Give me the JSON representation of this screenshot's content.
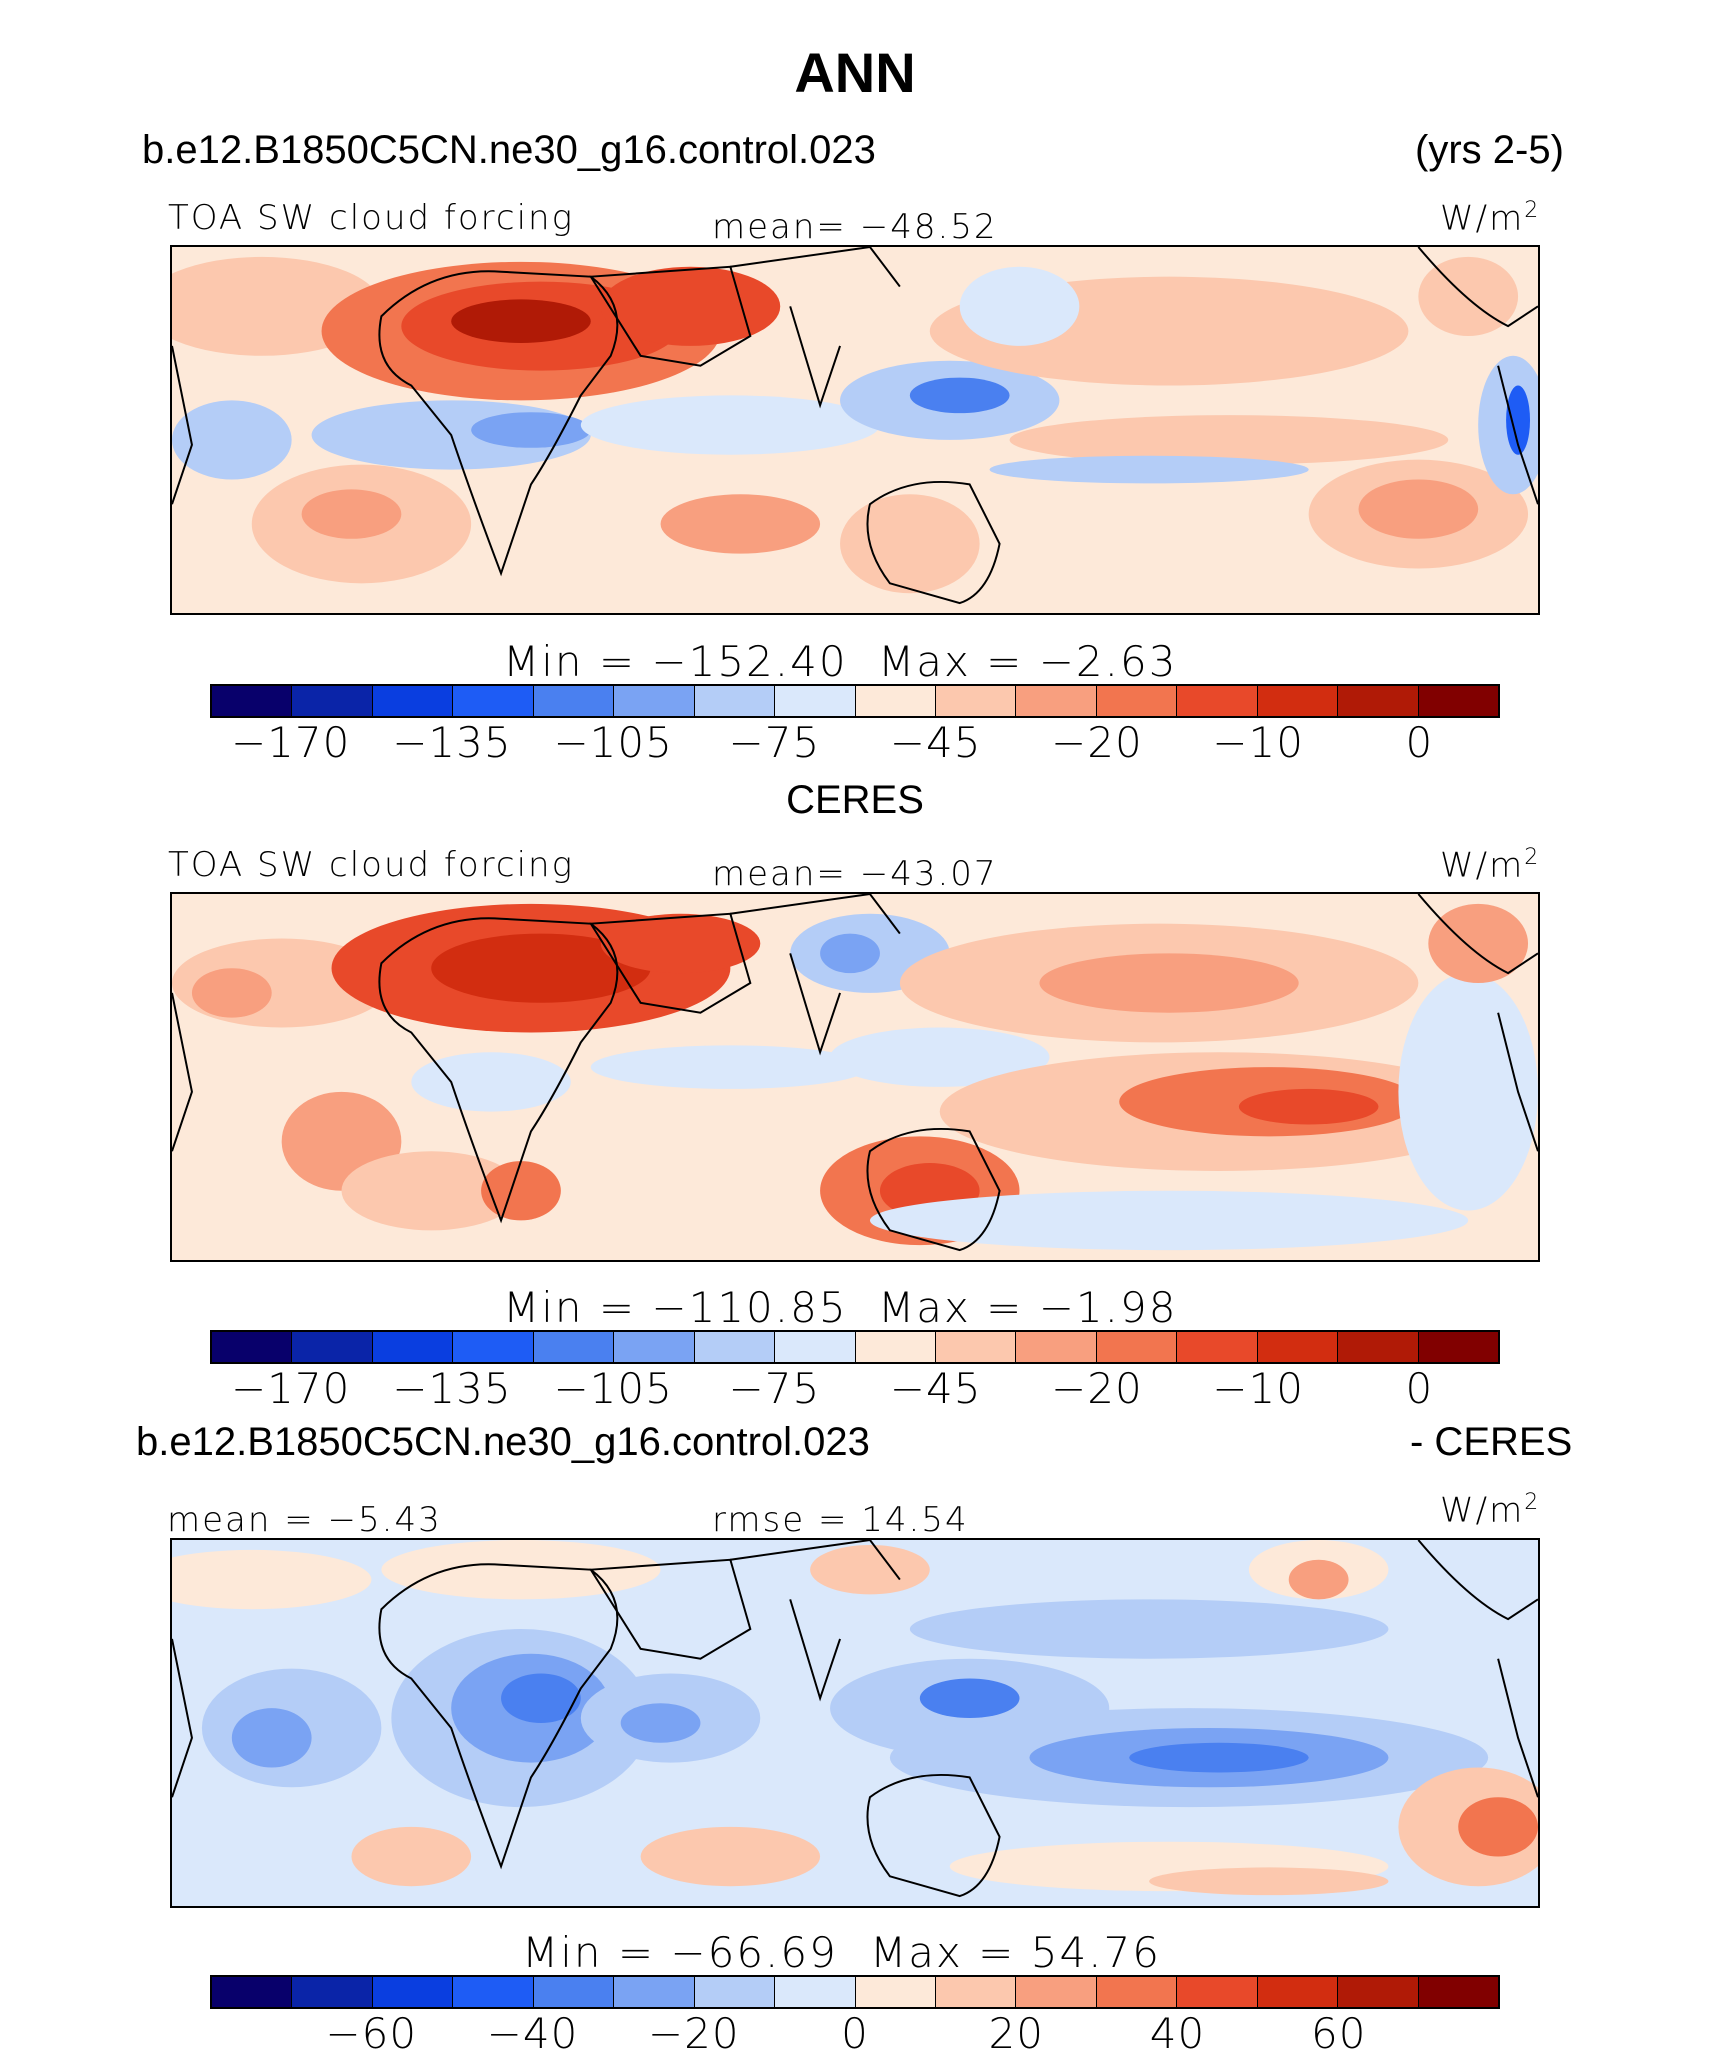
{
  "figure": {
    "title": "ANN",
    "case_name": "b.e12.B1850C5CN.ne30_g16.control.023",
    "years": "(yrs 2-5)",
    "diff_case_name": "b.e12.B1850C5CN.ne30_g16.control.023",
    "diff_suffix": "- CERES",
    "obs_title": "CERES",
    "units_base": "W/m",
    "units_exp": "2"
  },
  "panels": [
    {
      "variable": "TOA SW cloud forcing",
      "mean_text": "mean=  −48.52",
      "min_text": "Min  =  −152.40",
      "max_text": "Max  =   −2.63"
    },
    {
      "variable": "TOA SW cloud forcing",
      "mean_text": "mean=  −43.07",
      "min_text": "Min  =  −110.85",
      "max_text": "Max  =   −1.98"
    },
    {
      "mean_text": "mean  =   −5.43",
      "rmse_text": "rmse  =   14.54",
      "min_text": "Min  =  −66.69",
      "max_text": "Max  =   54.76"
    }
  ],
  "colorbars": [
    {
      "colors": [
        "#08006b",
        "#0a24a8",
        "#0a3ee0",
        "#1e5cf5",
        "#4a80f0",
        "#7aa3f3",
        "#b4cdf7",
        "#dae8fb",
        "#fde9d9",
        "#fcc8ae",
        "#f89f7f",
        "#f2754f",
        "#e8492a",
        "#d22d10",
        "#b01a06",
        "#810000"
      ],
      "tick_labels": [
        "−170",
        "−135",
        "−105",
        "−75",
        "−45",
        "−20",
        "−10",
        "0"
      ]
    },
    {
      "colors": [
        "#08006b",
        "#0a24a8",
        "#0a3ee0",
        "#1e5cf5",
        "#4a80f0",
        "#7aa3f3",
        "#b4cdf7",
        "#dae8fb",
        "#fde9d9",
        "#fcc8ae",
        "#f89f7f",
        "#f2754f",
        "#e8492a",
        "#d22d10",
        "#b01a06",
        "#810000"
      ],
      "tick_labels": [
        "−170",
        "−135",
        "−105",
        "−75",
        "−45",
        "−20",
        "−10",
        "0"
      ]
    },
    {
      "colors": [
        "#08006b",
        "#0a24a8",
        "#0a3ee0",
        "#1e5cf5",
        "#4a80f0",
        "#7aa3f3",
        "#b4cdf7",
        "#dae8fb",
        "#fde9d9",
        "#fcc8ae",
        "#f89f7f",
        "#f2754f",
        "#e8492a",
        "#d22d10",
        "#b01a06",
        "#810000"
      ],
      "tick_labels": [
        "−60",
        "−40",
        "−20",
        "0",
        "20",
        "40",
        "60"
      ]
    }
  ],
  "chart_data": [
    {
      "type": "heatmap",
      "title": "TOA SW cloud forcing",
      "subtitle": "b.e12.B1850C5CN.ne30_g16.control.023 (yrs 2-5)",
      "units": "W/m2",
      "mean": -48.52,
      "min": -152.4,
      "max": -2.63,
      "levels": [
        -170,
        -135,
        -105,
        -75,
        -45,
        -20,
        -10,
        0
      ]
    },
    {
      "type": "heatmap",
      "title": "TOA SW cloud forcing",
      "subtitle": "CERES",
      "units": "W/m2",
      "mean": -43.07,
      "min": -110.85,
      "max": -1.98,
      "levels": [
        -170,
        -135,
        -105,
        -75,
        -45,
        -20,
        -10,
        0
      ]
    },
    {
      "type": "heatmap",
      "title": "b.e12.B1850C5CN.ne30_g16.control.023 - CERES",
      "units": "W/m2",
      "mean": -5.43,
      "rmse": 14.54,
      "min": -66.69,
      "max": 54.76,
      "levels": [
        -60,
        -40,
        -20,
        0,
        20,
        40,
        60
      ]
    }
  ]
}
